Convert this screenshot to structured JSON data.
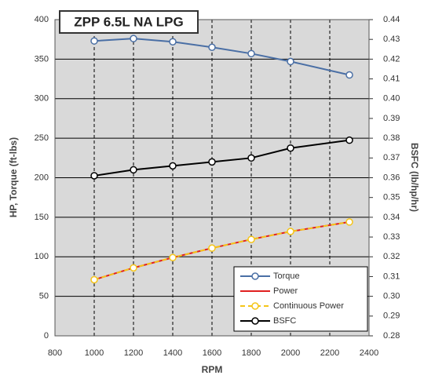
{
  "chart_data": {
    "type": "line",
    "title": "ZPP 6.5L NA LPG",
    "x_label": "RPM",
    "y_label": "HP, Torque (ft-lbs)",
    "y2_label": "BSFC (lb/hp/hr)",
    "x": [
      1000,
      1200,
      1400,
      1600,
      1800,
      2000,
      2300
    ],
    "xlim": [
      800,
      2400
    ],
    "xticks": [
      800,
      1000,
      1200,
      1400,
      1600,
      1800,
      2000,
      2200,
      2400
    ],
    "ylim": [
      0,
      400
    ],
    "yticks": [
      0,
      50,
      100,
      150,
      200,
      250,
      300,
      350,
      400
    ],
    "y2lim": [
      0.28,
      0.44
    ],
    "y2ticks": [
      0.28,
      0.29,
      {
        "value": 0.3,
        "label": "0.30"
      },
      0.31,
      0.32,
      0.33,
      0.34,
      0.35,
      0.36,
      0.37,
      0.38,
      0.39,
      {
        "value": 0.4,
        "label": "0.40"
      },
      0.41,
      0.42,
      0.43,
      0.44
    ],
    "grid": true,
    "legend": "lower right",
    "series": [
      {
        "name": "Torque",
        "color": "#4a6fa5",
        "values": [
          373,
          376,
          372,
          365,
          357,
          347,
          330
        ]
      },
      {
        "name": "Power",
        "color": "#e02020",
        "values": [
          71,
          86,
          99,
          111,
          122,
          132,
          144
        ]
      },
      {
        "name": "Continuous Power",
        "color": "#f5c518",
        "dashed": true,
        "values": [
          71,
          86,
          99,
          111,
          122,
          132,
          144
        ]
      },
      {
        "name": "BSFC",
        "color": "#000000",
        "axis": "y2",
        "values": [
          0.361,
          0.364,
          0.366,
          0.368,
          0.37,
          0.375,
          0.379
        ]
      }
    ]
  }
}
